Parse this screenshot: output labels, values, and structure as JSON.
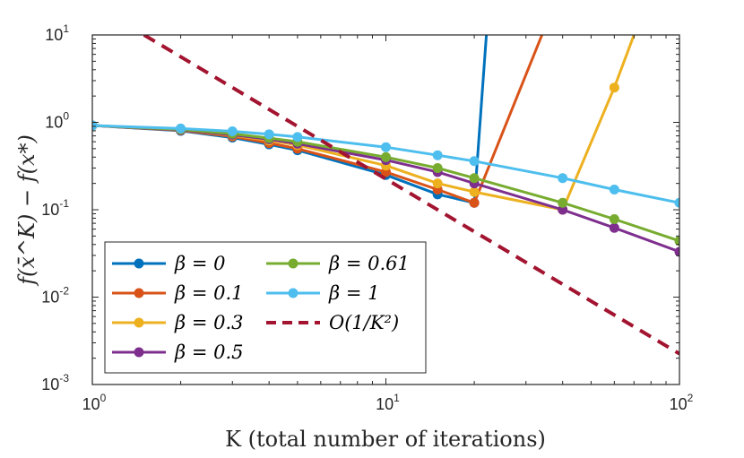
{
  "chart_data": {
    "type": "line",
    "xscale": "log",
    "yscale": "log",
    "xlim": [
      1,
      100
    ],
    "ylim": [
      0.001,
      10
    ],
    "xlabel": "K (total number of iterations)",
    "ylabel": "f(x̄^K) − f(x*)",
    "x_ticks": [
      {
        "value": 1,
        "base": "10",
        "exp": "0"
      },
      {
        "value": 10,
        "base": "10",
        "exp": "1"
      },
      {
        "value": 100,
        "base": "10",
        "exp": "2"
      }
    ],
    "y_ticks": [
      {
        "value": 0.001,
        "base": "10",
        "exp": "-3"
      },
      {
        "value": 0.01,
        "base": "10",
        "exp": "-2"
      },
      {
        "value": 0.1,
        "base": "10",
        "exp": "-1"
      },
      {
        "value": 1,
        "base": "10",
        "exp": "0"
      },
      {
        "value": 10,
        "base": "10",
        "exp": "1"
      }
    ],
    "series": [
      {
        "name": "β = 0",
        "color": "#0072BD",
        "marker": true,
        "x": [
          1,
          2,
          3,
          4,
          5,
          10,
          15,
          20,
          22
        ],
        "y": [
          0.92,
          0.8,
          0.67,
          0.56,
          0.48,
          0.25,
          0.15,
          0.12,
          10.0
        ],
        "marked": [
          true,
          true,
          true,
          true,
          true,
          true,
          true,
          true,
          false
        ]
      },
      {
        "name": "β = 0.1",
        "color": "#D95319",
        "marker": true,
        "x": [
          1,
          2,
          3,
          4,
          5,
          10,
          15,
          20,
          34
        ],
        "y": [
          0.92,
          0.81,
          0.69,
          0.58,
          0.5,
          0.27,
          0.17,
          0.12,
          10.0
        ],
        "marked": [
          true,
          true,
          true,
          true,
          true,
          true,
          true,
          true,
          false
        ]
      },
      {
        "name": "β = 0.3",
        "color": "#EDB120",
        "marker": true,
        "x": [
          1,
          2,
          3,
          4,
          5,
          10,
          15,
          20,
          40,
          60,
          70
        ],
        "y": [
          0.92,
          0.82,
          0.71,
          0.62,
          0.55,
          0.32,
          0.2,
          0.16,
          0.1,
          2.5,
          10.0
        ],
        "marked": [
          true,
          true,
          true,
          true,
          true,
          true,
          true,
          true,
          true,
          true,
          false
        ]
      },
      {
        "name": "β = 0.5",
        "color": "#7E2F8E",
        "marker": true,
        "x": [
          1,
          2,
          3,
          4,
          5,
          10,
          15,
          20,
          40,
          60,
          100
        ],
        "y": [
          0.92,
          0.82,
          0.72,
          0.64,
          0.57,
          0.37,
          0.27,
          0.2,
          0.1,
          0.062,
          0.033
        ],
        "marked": [
          true,
          true,
          true,
          true,
          true,
          true,
          true,
          true,
          true,
          true,
          true
        ]
      },
      {
        "name": "β = 0.61",
        "color": "#77AC30",
        "marker": true,
        "x": [
          1,
          2,
          3,
          4,
          5,
          10,
          15,
          20,
          40,
          60,
          100
        ],
        "y": [
          0.92,
          0.83,
          0.74,
          0.66,
          0.6,
          0.4,
          0.3,
          0.23,
          0.12,
          0.078,
          0.044
        ],
        "marked": [
          true,
          true,
          true,
          true,
          true,
          true,
          true,
          true,
          true,
          true,
          true
        ]
      },
      {
        "name": "β = 1",
        "color": "#4DBEEE",
        "marker": true,
        "x": [
          1,
          2,
          3,
          4,
          5,
          10,
          15,
          20,
          40,
          60,
          100
        ],
        "y": [
          0.92,
          0.85,
          0.79,
          0.73,
          0.68,
          0.52,
          0.42,
          0.36,
          0.23,
          0.17,
          0.12
        ],
        "marked": [
          true,
          true,
          true,
          true,
          true,
          true,
          true,
          true,
          true,
          true,
          true
        ]
      },
      {
        "name": "O(1/K²)",
        "color": "#A2142F",
        "marker": false,
        "dashed": true,
        "x": [
          1.5,
          100
        ],
        "y": [
          10.0,
          0.00225
        ],
        "marked": [
          false,
          false
        ]
      }
    ],
    "legend": {
      "placement": "bottom-left",
      "entries": [
        {
          "series": 0,
          "label": "β = 0"
        },
        {
          "series": 1,
          "label": "β = 0.1"
        },
        {
          "series": 2,
          "label": "β = 0.3"
        },
        {
          "series": 3,
          "label": "β = 0.5"
        },
        {
          "series": 4,
          "label": "β = 0.61"
        },
        {
          "series": 5,
          "label": "β = 1"
        },
        {
          "series": 6,
          "label": "O(1/K²)"
        }
      ]
    }
  }
}
